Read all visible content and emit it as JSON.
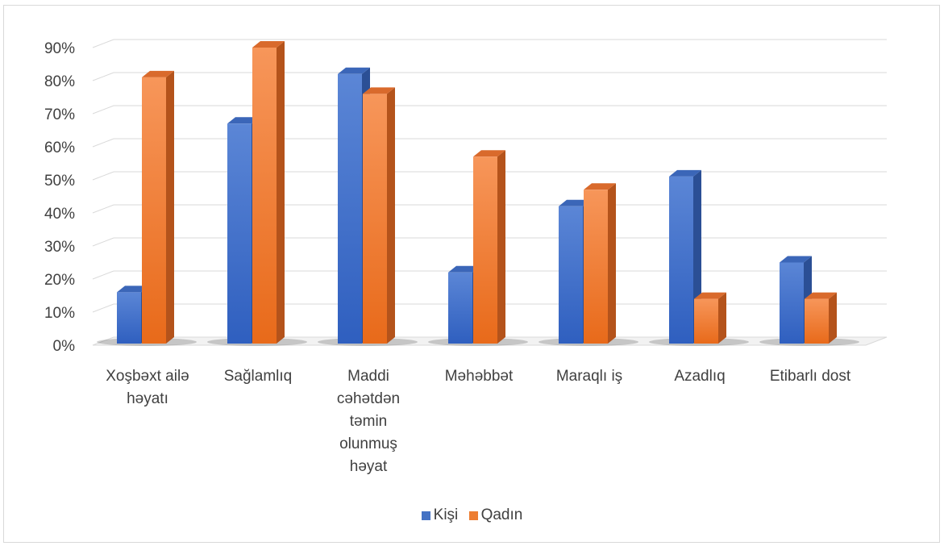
{
  "chart_data": {
    "type": "bar",
    "style": "3d-clustered-column",
    "categories": [
      [
        "Xoşbəxt ailə",
        "həyatı"
      ],
      [
        "Sağlamlıq"
      ],
      [
        "Maddi",
        "cəhətdən",
        "təmin",
        "olunmuş",
        "həyat"
      ],
      [
        "Məhəbbət"
      ],
      [
        "Maraqlı iş"
      ],
      [
        "Azadlıq"
      ],
      [
        "Etibarlı dost"
      ]
    ],
    "series": [
      {
        "name": "Kişi",
        "color": "#4472c4",
        "values": [
          16,
          67,
          82,
          22,
          42,
          51,
          25
        ]
      },
      {
        "name": "Qadın",
        "color": "#ed7d31",
        "values": [
          81,
          90,
          76,
          57,
          47,
          14,
          14
        ]
      }
    ],
    "ylim": [
      0,
      90
    ],
    "yticks": [
      "0%",
      "10%",
      "20%",
      "30%",
      "40%",
      "50%",
      "60%",
      "70%",
      "80%",
      "90%"
    ],
    "grid": true,
    "legend_position": "bottom"
  }
}
